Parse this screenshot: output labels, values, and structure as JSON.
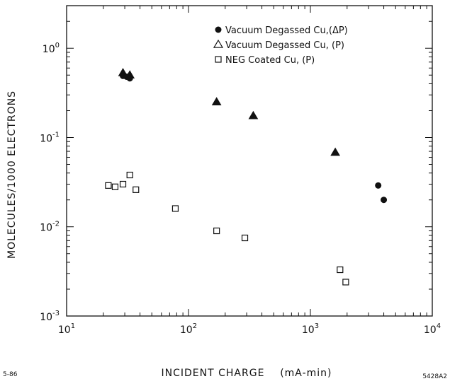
{
  "chart_data": {
    "type": "scatter",
    "xlabel": "INCIDENT CHARGE    (mA-min)",
    "ylabel": "MOLECULES/1000 ELECTRONS",
    "x_scale": "log",
    "y_scale": "log",
    "xlim": [
      10,
      10000
    ],
    "ylim": [
      0.001,
      3
    ],
    "grid": false,
    "legend_position": "top-right",
    "x_ticks": [
      {
        "value": 10,
        "base": "10",
        "exp": "1"
      },
      {
        "value": 100,
        "base": "10",
        "exp": "2"
      },
      {
        "value": 1000,
        "base": "10",
        "exp": "3"
      },
      {
        "value": 10000,
        "base": "10",
        "exp": "4"
      }
    ],
    "y_ticks": [
      {
        "value": 1,
        "base": "10",
        "exp": "0"
      },
      {
        "value": 0.1,
        "base": "10",
        "exp": "-1"
      },
      {
        "value": 0.01,
        "base": "10",
        "exp": "-2"
      },
      {
        "value": 0.001,
        "base": "10",
        "exp": "-3"
      }
    ],
    "series": [
      {
        "name": "Vacuum Degassed Cu,(ΔP)",
        "marker": "filled-circle",
        "points": [
          {
            "x": 29,
            "y": 0.49
          },
          {
            "x": 31,
            "y": 0.48
          },
          {
            "x": 33,
            "y": 0.46
          },
          {
            "x": 3600,
            "y": 0.029
          },
          {
            "x": 4000,
            "y": 0.02
          }
        ]
      },
      {
        "name": "Vacuum Degassed Cu, (P)",
        "marker": "triangle",
        "points": [
          {
            "x": 29,
            "y": 0.53
          },
          {
            "x": 33,
            "y": 0.5
          },
          {
            "x": 170,
            "y": 0.25
          },
          {
            "x": 340,
            "y": 0.175
          },
          {
            "x": 1600,
            "y": 0.068
          }
        ]
      },
      {
        "name": "NEG Coated Cu,  (P)",
        "marker": "open-square",
        "points": [
          {
            "x": 22,
            "y": 0.029
          },
          {
            "x": 25,
            "y": 0.028
          },
          {
            "x": 29,
            "y": 0.03
          },
          {
            "x": 33,
            "y": 0.038
          },
          {
            "x": 37,
            "y": 0.026
          },
          {
            "x": 78,
            "y": 0.016
          },
          {
            "x": 170,
            "y": 0.009
          },
          {
            "x": 290,
            "y": 0.0075
          },
          {
            "x": 1750,
            "y": 0.0033
          },
          {
            "x": 1950,
            "y": 0.0024
          }
        ]
      }
    ],
    "annotations": {
      "bottom_left": "5-86",
      "bottom_right": "5428A2"
    }
  },
  "colors": {
    "ink": "#111111",
    "background": "#ffffff"
  }
}
